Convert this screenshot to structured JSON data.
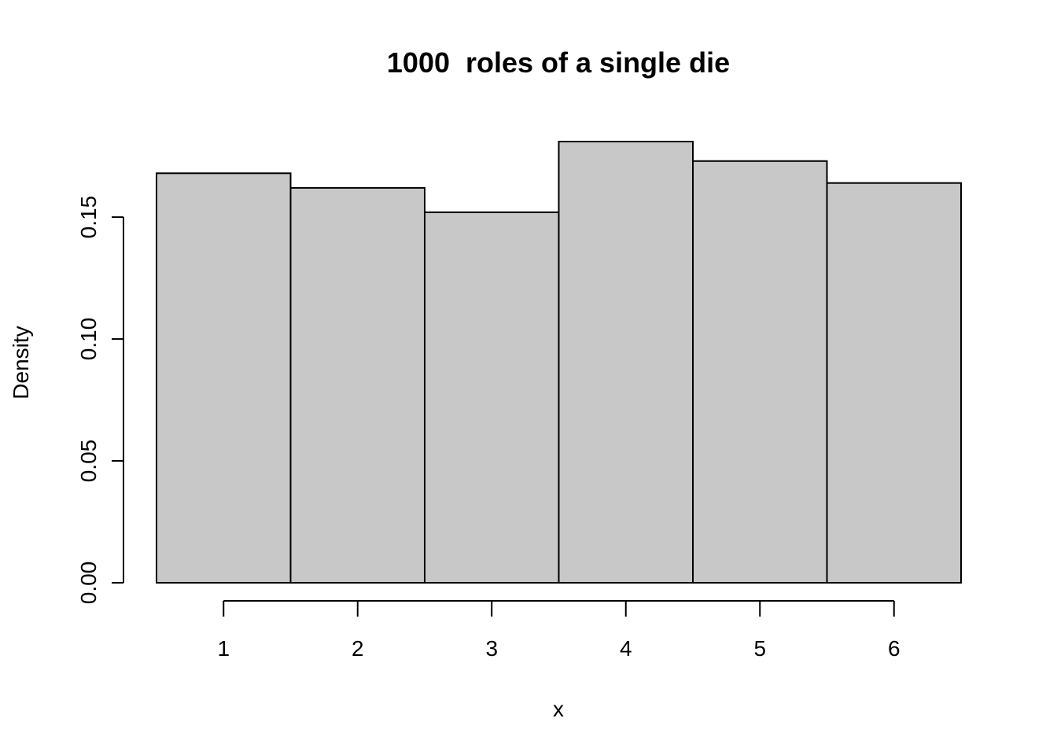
{
  "chart_data": {
    "type": "bar",
    "title": "1000  roles of a single die",
    "xlabel": "x",
    "ylabel": "Density",
    "categories": [
      "1",
      "2",
      "3",
      "4",
      "5",
      "6"
    ],
    "bin_edges": [
      0.5,
      1.5,
      2.5,
      3.5,
      4.5,
      5.5,
      6.5
    ],
    "values": [
      0.168,
      0.162,
      0.152,
      0.181,
      0.173,
      0.164
    ],
    "xlim": [
      0.5,
      6.5
    ],
    "ylim": [
      0,
      0.181
    ],
    "x_ticks": [
      "1",
      "2",
      "3",
      "4",
      "5",
      "6"
    ],
    "y_ticks": [
      "0.00",
      "0.05",
      "0.10",
      "0.15"
    ],
    "bar_color": "#c8c8c8",
    "grid": false,
    "legend": "none"
  }
}
